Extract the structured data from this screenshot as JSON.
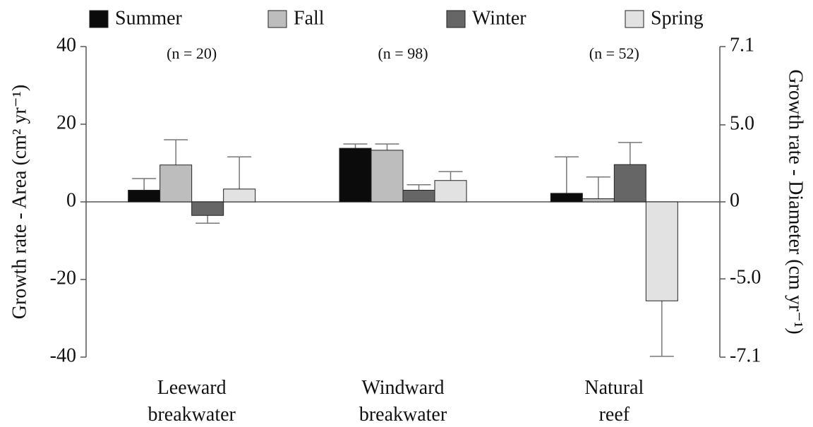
{
  "chart_data": {
    "type": "bar",
    "categories": [
      "Leeward breakwater",
      "Windward breakwater",
      "Natural reef"
    ],
    "series": [
      {
        "name": "Summer",
        "color": "#0b0b0b",
        "values": [
          3,
          13.8,
          2.2
        ],
        "errors": [
          3,
          1.1,
          9.4
        ]
      },
      {
        "name": "Fall",
        "color": "#bdbdbd",
        "values": [
          9.5,
          13.3,
          0.8
        ],
        "errors": [
          6.5,
          1.6,
          5.6
        ]
      },
      {
        "name": "Winter",
        "color": "#666666",
        "values": [
          -3.5,
          3,
          9.6
        ],
        "errors": [
          2,
          1.4,
          5.7
        ]
      },
      {
        "name": "Spring",
        "color": "#e2e2e2",
        "values": [
          3.3,
          5.5,
          -25.5
        ],
        "errors": [
          8.3,
          2.3,
          14.3
        ]
      }
    ],
    "annotations": [
      "(n = 20)",
      "(n = 98)",
      "(n = 52)"
    ],
    "ylabel": "Growth rate - Area (cm² yr⁻¹)",
    "y2label": "Growth rate - Diameter (cm yr⁻¹)",
    "ylim": [
      -40,
      40
    ],
    "yticks": [
      -40,
      -20,
      0,
      20,
      40
    ],
    "y2lim": [
      -7.1,
      7.1
    ],
    "y2scale": "signed-square",
    "y2ticks": [
      -7.1,
      {
        "value": -5,
        "label": "-5.0"
      },
      0,
      {
        "value": 5,
        "label": "5.0"
      },
      7.1
    ],
    "legend": "top"
  }
}
